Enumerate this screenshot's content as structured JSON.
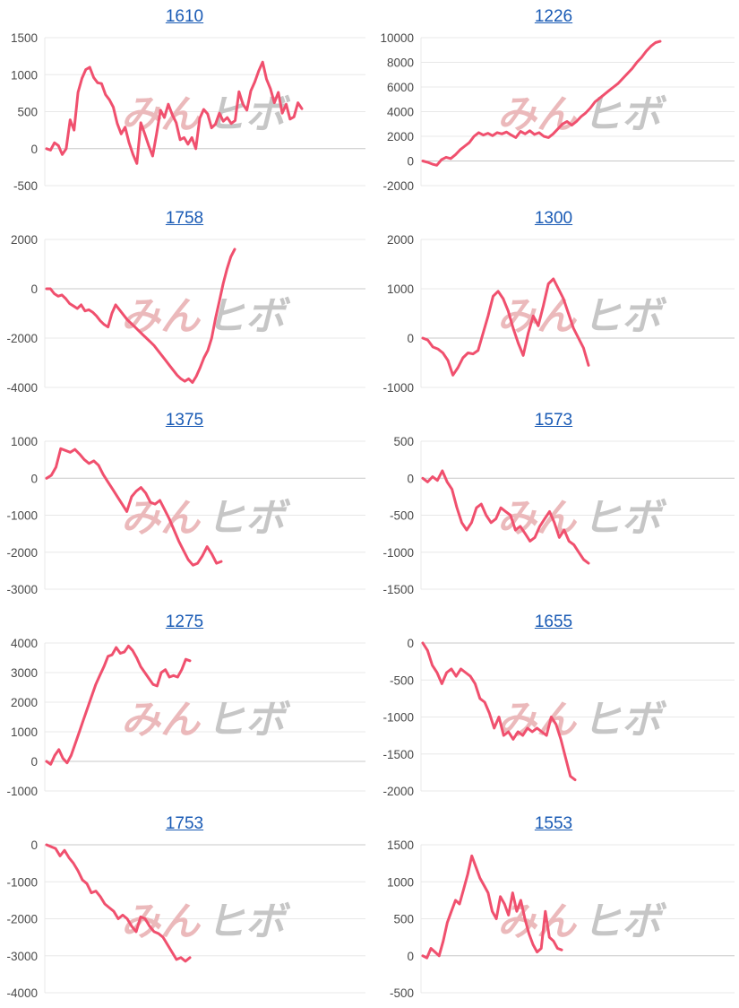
{
  "watermark": {
    "left": "みん",
    "right": "ヒボ"
  },
  "colors": {
    "line": "#f0506e",
    "grid": "#e8e8e8",
    "zero_line": "#c8c8c8",
    "title": "#1a5bb5"
  },
  "chart_data": [
    {
      "type": "line",
      "title": "1610",
      "ylim": [
        -500,
        1500
      ],
      "yticks": [
        "1500",
        "1000",
        "500",
        "0",
        "-500"
      ],
      "values": [
        0,
        -20,
        80,
        40,
        -80,
        0,
        390,
        250,
        760,
        950,
        1070,
        1100,
        960,
        890,
        880,
        730,
        660,
        560,
        340,
        200,
        290,
        80,
        -80,
        -200,
        350,
        200,
        40,
        -100,
        200,
        520,
        420,
        600,
        460,
        350,
        120,
        150,
        60,
        150,
        0,
        410,
        530,
        470,
        280,
        330,
        480,
        370,
        420,
        340,
        380,
        770,
        600,
        520,
        780,
        900,
        1050,
        1170,
        940,
        810,
        620,
        760,
        480,
        600,
        400,
        430,
        620,
        540
      ]
    },
    {
      "type": "line",
      "title": "1226",
      "ylim": [
        -2000,
        10000
      ],
      "yticks": [
        "10000",
        "8000",
        "6000",
        "4000",
        "2000",
        "0",
        "-2000"
      ],
      "values": [
        0,
        -100,
        -250,
        -350,
        100,
        300,
        200,
        500,
        900,
        1200,
        1500,
        2000,
        2300,
        2100,
        2250,
        2050,
        2300,
        2200,
        2350,
        2100,
        1900,
        2400,
        2200,
        2450,
        2150,
        2300,
        2000,
        1900,
        2200,
        2600,
        3000,
        3200,
        2900,
        3200,
        3600,
        3900,
        4300,
        4800,
        5100,
        5400,
        5700,
        6000,
        6300,
        6700,
        7100,
        7500,
        8000,
        8400,
        8900,
        9300,
        9600,
        9700
      ]
    },
    {
      "type": "line",
      "title": "1758",
      "ylim": [
        -4000,
        2000
      ],
      "yticks": [
        "2000",
        "0",
        "-2000",
        "-4000"
      ],
      "values": [
        0,
        0,
        -200,
        -300,
        -250,
        -400,
        -600,
        -700,
        -800,
        -650,
        -900,
        -850,
        -950,
        -1100,
        -1300,
        -1450,
        -1550,
        -1000,
        -650,
        -850,
        -1050,
        -1250,
        -1400,
        -1550,
        -1700,
        -1850,
        -2000,
        -2150,
        -2300,
        -2500,
        -2700,
        -2900,
        -3100,
        -3300,
        -3500,
        -3650,
        -3750,
        -3650,
        -3800,
        -3550,
        -3200,
        -2800,
        -2500,
        -2000,
        -1200,
        -500,
        200,
        800,
        1300,
        1600
      ]
    },
    {
      "type": "line",
      "title": "1300",
      "ylim": [
        -1000,
        2000
      ],
      "yticks": [
        "2000",
        "1000",
        "0",
        "-1000"
      ],
      "values": [
        0,
        -40,
        -180,
        -220,
        -300,
        -450,
        -750,
        -600,
        -400,
        -300,
        -320,
        -250,
        100,
        450,
        850,
        950,
        800,
        550,
        200,
        -100,
        -350,
        100,
        450,
        250,
        650,
        1100,
        1200,
        1000,
        800,
        500,
        200,
        0,
        -200,
        -550
      ]
    },
    {
      "type": "line",
      "title": "1375",
      "ylim": [
        -3000,
        1000
      ],
      "yticks": [
        "1000",
        "0",
        "-1000",
        "-2000",
        "-3000"
      ],
      "values": [
        0,
        80,
        300,
        800,
        750,
        700,
        780,
        650,
        500,
        400,
        470,
        350,
        100,
        -100,
        -300,
        -500,
        -700,
        -900,
        -500,
        -350,
        -250,
        -400,
        -650,
        -700,
        -600,
        -850,
        -1100,
        -1400,
        -1700,
        -1950,
        -2200,
        -2350,
        -2300,
        -2100,
        -1850,
        -2050,
        -2300,
        -2250
      ]
    },
    {
      "type": "line",
      "title": "1573",
      "ylim": [
        -1500,
        500
      ],
      "yticks": [
        "500",
        "0",
        "-500",
        "-1000",
        "-1500"
      ],
      "values": [
        0,
        -50,
        20,
        -30,
        100,
        -50,
        -150,
        -400,
        -600,
        -700,
        -600,
        -400,
        -350,
        -500,
        -600,
        -550,
        -400,
        -450,
        -500,
        -700,
        -650,
        -750,
        -850,
        -800,
        -650,
        -550,
        -450,
        -600,
        -800,
        -700,
        -850,
        -900,
        -1000,
        -1100,
        -1150
      ]
    },
    {
      "type": "line",
      "title": "1275",
      "ylim": [
        -1000,
        4000
      ],
      "yticks": [
        "4000",
        "3000",
        "2000",
        "1000",
        "0",
        "-1000"
      ],
      "values": [
        0,
        -100,
        200,
        400,
        100,
        -50,
        200,
        600,
        1000,
        1400,
        1800,
        2200,
        2600,
        2900,
        3200,
        3550,
        3600,
        3850,
        3650,
        3700,
        3900,
        3750,
        3500,
        3200,
        3000,
        2800,
        2600,
        2550,
        3000,
        3100,
        2850,
        2900,
        2850,
        3100,
        3450,
        3400
      ]
    },
    {
      "type": "line",
      "title": "1655",
      "ylim": [
        -2000,
        0
      ],
      "yticks": [
        "0",
        "-500",
        "-1000",
        "-1500",
        "-2000"
      ],
      "values": [
        0,
        -100,
        -300,
        -400,
        -550,
        -400,
        -350,
        -450,
        -350,
        -400,
        -450,
        -550,
        -750,
        -800,
        -950,
        -1150,
        -1000,
        -1250,
        -1200,
        -1300,
        -1200,
        -1250,
        -1150,
        -1200,
        -1150,
        -1200,
        -1250,
        -1000,
        -1100,
        -1300,
        -1550,
        -1800,
        -1850
      ]
    },
    {
      "type": "line",
      "title": "1753",
      "ylim": [
        -4000,
        0
      ],
      "yticks": [
        "0",
        "-1000",
        "-2000",
        "-3000",
        "-4000"
      ],
      "values": [
        0,
        -50,
        -100,
        -300,
        -150,
        -350,
        -500,
        -700,
        -950,
        -1050,
        -1300,
        -1250,
        -1400,
        -1600,
        -1700,
        -1800,
        -2000,
        -1900,
        -2000,
        -2200,
        -2350,
        -1950,
        -2000,
        -2200,
        -2350,
        -2400,
        -2500,
        -2700,
        -2900,
        -3100,
        -3050,
        -3150,
        -3050
      ]
    },
    {
      "type": "line",
      "title": "1553",
      "ylim": [
        -500,
        1500
      ],
      "yticks": [
        "1500",
        "1000",
        "500",
        "0",
        "-500"
      ],
      "values": [
        0,
        -30,
        100,
        50,
        0,
        200,
        450,
        600,
        750,
        700,
        900,
        1100,
        1350,
        1200,
        1050,
        950,
        850,
        600,
        500,
        800,
        700,
        550,
        850,
        600,
        750,
        500,
        300,
        150,
        50,
        100,
        600,
        250,
        200,
        100,
        80
      ]
    }
  ]
}
